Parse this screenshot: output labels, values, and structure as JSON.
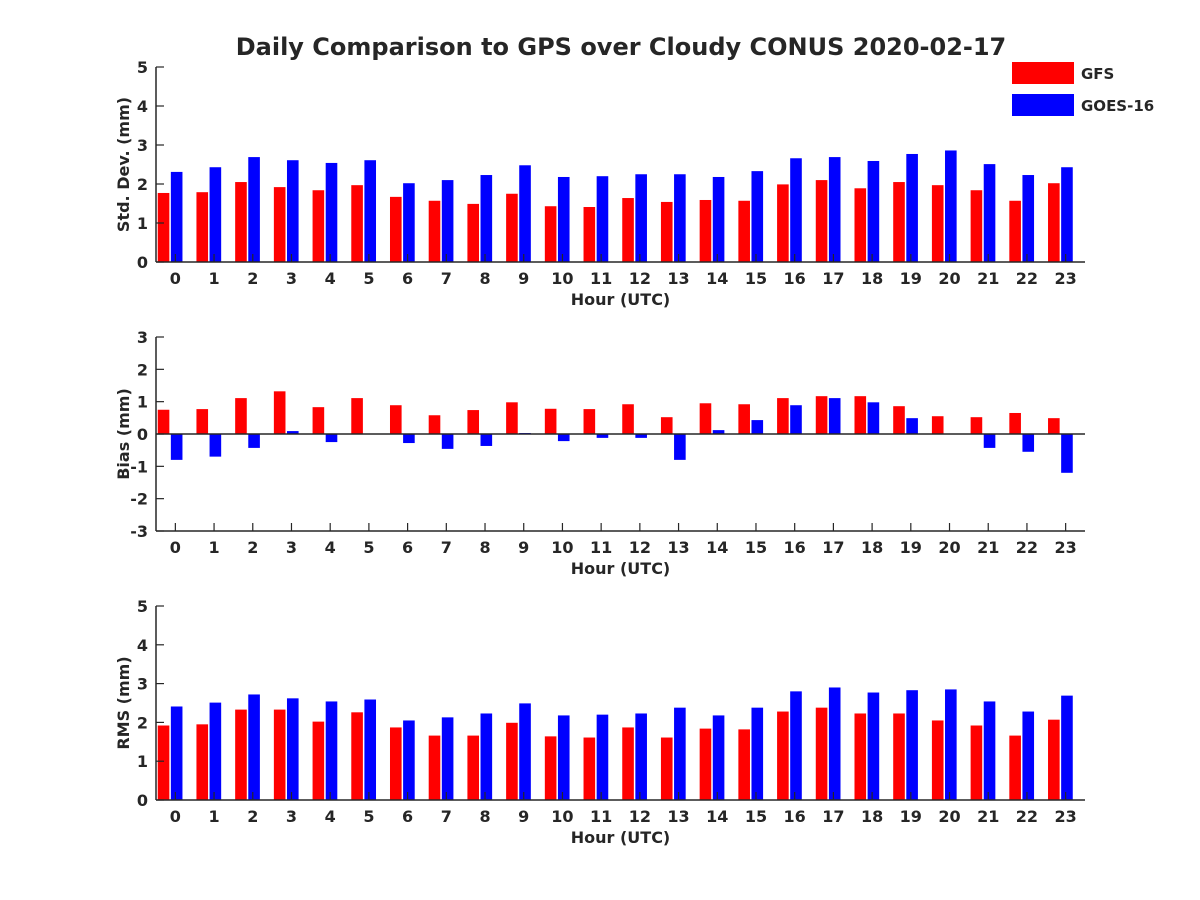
{
  "figure": {
    "title": "Daily Comparison to GPS over Cloudy CONUS 2020-02-17"
  },
  "legend": {
    "placement": "top-right",
    "entries": [
      {
        "name": "GFS",
        "color": "#ff0000"
      },
      {
        "name": "GOES-16",
        "color": "#0000ff"
      }
    ]
  },
  "chart_data": [
    {
      "type": "bar",
      "xlabel": "Hour (UTC)",
      "ylabel": "Std. Dev. (mm)",
      "ylim": [
        0,
        5
      ],
      "yticks": [
        0,
        1,
        2,
        3,
        4,
        5
      ],
      "categories": [
        "0",
        "1",
        "2",
        "3",
        "4",
        "5",
        "6",
        "7",
        "8",
        "9",
        "10",
        "11",
        "12",
        "13",
        "14",
        "15",
        "16",
        "17",
        "18",
        "19",
        "20",
        "21",
        "22",
        "23"
      ],
      "series": [
        {
          "name": "GFS",
          "color": "#ff0000",
          "values": [
            1.77,
            1.79,
            2.05,
            1.92,
            1.84,
            1.97,
            1.67,
            1.57,
            1.49,
            1.75,
            1.43,
            1.41,
            1.64,
            1.54,
            1.59,
            1.57,
            1.99,
            2.1,
            1.89,
            2.05,
            1.97,
            1.84,
            1.57,
            2.02
          ]
        },
        {
          "name": "GOES-16",
          "color": "#0000ff",
          "values": [
            2.31,
            2.43,
            2.69,
            2.61,
            2.54,
            2.61,
            2.02,
            2.1,
            2.23,
            2.48,
            2.18,
            2.2,
            2.25,
            2.25,
            2.18,
            2.33,
            2.66,
            2.69,
            2.59,
            2.77,
            2.86,
            2.51,
            2.23,
            2.43
          ]
        }
      ]
    },
    {
      "type": "bar",
      "xlabel": "Hour (UTC)",
      "ylabel": "Bias (mm)",
      "ylim": [
        -3,
        3
      ],
      "yticks": [
        -3,
        -2,
        -1,
        0,
        1,
        2,
        3
      ],
      "categories": [
        "0",
        "1",
        "2",
        "3",
        "4",
        "5",
        "6",
        "7",
        "8",
        "9",
        "10",
        "11",
        "12",
        "13",
        "14",
        "15",
        "16",
        "17",
        "18",
        "19",
        "20",
        "21",
        "22",
        "23"
      ],
      "series": [
        {
          "name": "GFS",
          "color": "#ff0000",
          "values": [
            0.75,
            0.77,
            1.11,
            1.32,
            0.83,
            1.11,
            0.89,
            0.58,
            0.74,
            0.98,
            0.78,
            0.77,
            0.92,
            0.52,
            0.95,
            0.92,
            1.11,
            1.17,
            1.17,
            0.86,
            0.55,
            0.52,
            0.65,
            0.49
          ]
        },
        {
          "name": "GOES-16",
          "color": "#0000ff",
          "values": [
            -0.8,
            -0.7,
            -0.43,
            0.09,
            -0.25,
            0.0,
            -0.28,
            -0.46,
            -0.37,
            0.03,
            -0.22,
            -0.12,
            -0.12,
            -0.8,
            0.12,
            0.43,
            0.89,
            1.11,
            0.98,
            0.49,
            0.0,
            -0.43,
            -0.55,
            -1.2
          ]
        }
      ]
    },
    {
      "type": "bar",
      "xlabel": "Hour (UTC)",
      "ylabel": "RMS (mm)",
      "ylim": [
        0,
        5
      ],
      "yticks": [
        0,
        1,
        2,
        3,
        4,
        5
      ],
      "categories": [
        "0",
        "1",
        "2",
        "3",
        "4",
        "5",
        "6",
        "7",
        "8",
        "9",
        "10",
        "11",
        "12",
        "13",
        "14",
        "15",
        "16",
        "17",
        "18",
        "19",
        "20",
        "21",
        "22",
        "23"
      ],
      "series": [
        {
          "name": "GFS",
          "color": "#ff0000",
          "values": [
            1.92,
            1.95,
            2.33,
            2.33,
            2.02,
            2.26,
            1.87,
            1.66,
            1.66,
            1.99,
            1.64,
            1.61,
            1.87,
            1.61,
            1.84,
            1.82,
            2.28,
            2.38,
            2.23,
            2.23,
            2.05,
            1.92,
            1.66,
            2.07
          ]
        },
        {
          "name": "GOES-16",
          "color": "#0000ff",
          "values": [
            2.41,
            2.51,
            2.72,
            2.62,
            2.54,
            2.59,
            2.05,
            2.13,
            2.23,
            2.49,
            2.18,
            2.2,
            2.23,
            2.38,
            2.18,
            2.38,
            2.8,
            2.9,
            2.77,
            2.83,
            2.85,
            2.54,
            2.28,
            2.69
          ]
        }
      ]
    }
  ]
}
